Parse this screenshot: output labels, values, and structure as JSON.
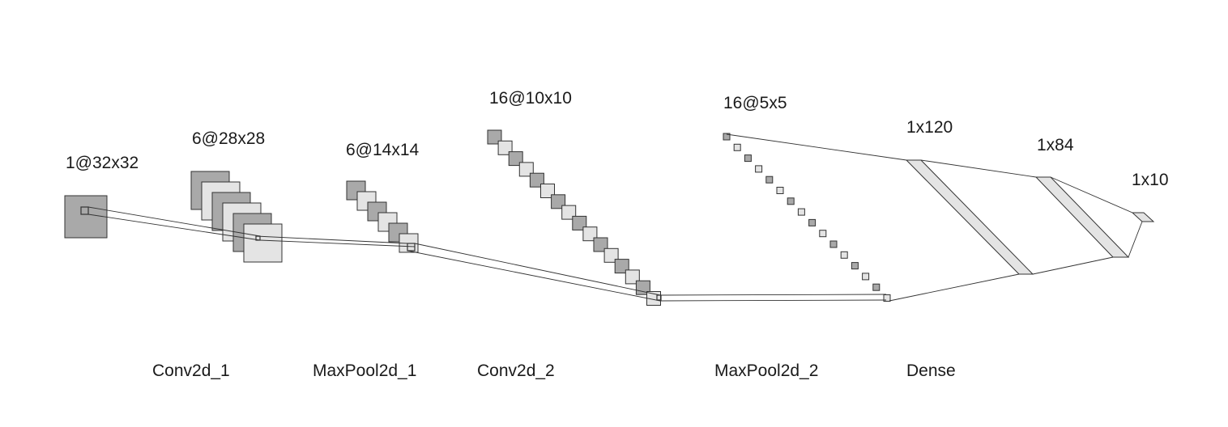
{
  "diagram": {
    "colors": {
      "dark_fill": "#a9a9a9",
      "light_fill": "#e4e4e4",
      "stroke": "#333333",
      "background": "#ffffff"
    },
    "layers": [
      {
        "id": "input",
        "shape": "1@32x32",
        "caption": ""
      },
      {
        "id": "conv1",
        "shape": "6@28x28",
        "caption": "Conv2d_1"
      },
      {
        "id": "pool1",
        "shape": "6@14x14",
        "caption": "MaxPool2d_1"
      },
      {
        "id": "conv2",
        "shape": "16@10x10",
        "caption": "Conv2d_2"
      },
      {
        "id": "pool2",
        "shape": "16@5x5",
        "caption": "MaxPool2d_2"
      },
      {
        "id": "dense120",
        "shape": "1x120",
        "caption": "Dense"
      },
      {
        "id": "dense84",
        "shape": "1x84",
        "caption": ""
      },
      {
        "id": "dense10",
        "shape": "1x10",
        "caption": ""
      }
    ]
  }
}
